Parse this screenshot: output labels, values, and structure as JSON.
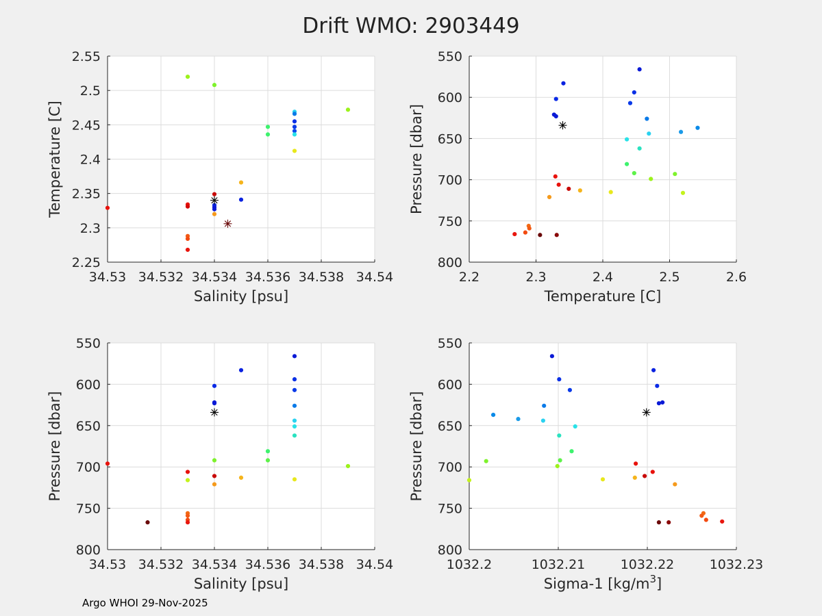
{
  "figure_title": "Drift WMO: 2903449",
  "footer": "Argo WHOI 29-Nov-2025",
  "chart_data": [
    {
      "type": "scatter",
      "xlabel": "Salinity [psu]",
      "ylabel": "Temperature [C]",
      "xlim": [
        34.53,
        34.54
      ],
      "ylim": [
        2.25,
        2.55
      ],
      "y_reversed": false,
      "xticks": [
        34.53,
        34.532,
        34.534,
        34.536,
        34.538,
        34.54
      ],
      "xtick_labels": [
        "34.53",
        "34.532",
        "34.534",
        "34.536",
        "34.538",
        "34.54"
      ],
      "yticks": [
        2.25,
        2.3,
        2.35,
        2.4,
        2.45,
        2.5,
        2.55
      ],
      "ytick_labels": [
        "2.25",
        "2.3",
        "2.35",
        "2.4",
        "2.45",
        "2.5",
        "2.55"
      ],
      "grid": true,
      "points": [
        {
          "x": 34.53,
          "y": 2.329,
          "color": "#e8120c"
        },
        {
          "x": 34.533,
          "y": 2.52,
          "color": "#9cf21c"
        },
        {
          "x": 34.533,
          "y": 2.334,
          "color": "#e8120c"
        },
        {
          "x": 34.533,
          "y": 2.331,
          "color": "#d40a08"
        },
        {
          "x": 34.533,
          "y": 2.288,
          "color": "#f25a14"
        },
        {
          "x": 34.533,
          "y": 2.284,
          "color": "#f24a10"
        },
        {
          "x": 34.533,
          "y": 2.268,
          "color": "#e8160e"
        },
        {
          "x": 34.534,
          "y": 2.508,
          "color": "#7ef22c"
        },
        {
          "x": 34.534,
          "y": 2.349,
          "color": "#c80a08"
        },
        {
          "x": 34.534,
          "y": 2.333,
          "color": "#0a2ae6"
        },
        {
          "x": 34.534,
          "y": 2.33,
          "color": "#0a1ad6"
        },
        {
          "x": 34.534,
          "y": 2.327,
          "color": "#0a1ad6"
        },
        {
          "x": 34.534,
          "y": 2.32,
          "color": "#f59a1c"
        },
        {
          "x": 34.535,
          "y": 2.366,
          "color": "#f5b41c"
        },
        {
          "x": 34.535,
          "y": 2.341,
          "color": "#0a22e0"
        },
        {
          "x": 34.536,
          "y": 2.447,
          "color": "#3ef26e"
        },
        {
          "x": 34.536,
          "y": 2.436,
          "color": "#3ef26e"
        },
        {
          "x": 34.537,
          "y": 2.469,
          "color": "#2ad2f0"
        },
        {
          "x": 34.537,
          "y": 2.466,
          "color": "#0a7ae8"
        },
        {
          "x": 34.537,
          "y": 2.455,
          "color": "#0a30e6"
        },
        {
          "x": 34.537,
          "y": 2.447,
          "color": "#0a3ae8"
        },
        {
          "x": 34.537,
          "y": 2.441,
          "color": "#0a4aee"
        },
        {
          "x": 34.537,
          "y": 2.436,
          "color": "#2ae2e8"
        },
        {
          "x": 34.537,
          "y": 2.412,
          "color": "#e8e81c"
        },
        {
          "x": 34.539,
          "y": 2.472,
          "color": "#9cf21c"
        }
      ],
      "marker": {
        "x": 34.5345,
        "y": 2.306,
        "symbol": "*",
        "color": "#6a0a0a"
      },
      "marker2": {
        "x": 34.534,
        "y": 2.34,
        "symbol": "*",
        "color": "#000000"
      }
    },
    {
      "type": "scatter",
      "xlabel": "Temperature [C]",
      "ylabel": "Pressure [dbar]",
      "xlim": [
        2.2,
        2.6
      ],
      "ylim": [
        550,
        800
      ],
      "y_reversed": true,
      "xticks": [
        2.2,
        2.3,
        2.4,
        2.5,
        2.6
      ],
      "xtick_labels": [
        "2.2",
        "2.3",
        "2.4",
        "2.5",
        "2.6"
      ],
      "yticks": [
        550,
        600,
        650,
        700,
        750,
        800
      ],
      "ytick_labels": [
        "550",
        "600",
        "650",
        "700",
        "750",
        "800"
      ],
      "grid": true,
      "points": [
        {
          "x": 2.455,
          "y": 566,
          "color": "#0a1ad6"
        },
        {
          "x": 2.341,
          "y": 583,
          "color": "#0a22e0"
        },
        {
          "x": 2.447,
          "y": 594,
          "color": "#0a30e6"
        },
        {
          "x": 2.33,
          "y": 602,
          "color": "#0a2ae6"
        },
        {
          "x": 2.441,
          "y": 607,
          "color": "#0a3ae8"
        },
        {
          "x": 2.327,
          "y": 621,
          "color": "#0a1ad6"
        },
        {
          "x": 2.33,
          "y": 623,
          "color": "#0a1ad6"
        },
        {
          "x": 2.466,
          "y": 626,
          "color": "#0a7ae8"
        },
        {
          "x": 2.542,
          "y": 637,
          "color": "#0a8ae8"
        },
        {
          "x": 2.517,
          "y": 642,
          "color": "#1a9ae8"
        },
        {
          "x": 2.469,
          "y": 644,
          "color": "#2ad2f0"
        },
        {
          "x": 2.436,
          "y": 651,
          "color": "#2ae2e8"
        },
        {
          "x": 2.455,
          "y": 662,
          "color": "#2ae2c0"
        },
        {
          "x": 2.436,
          "y": 681,
          "color": "#3ef26e"
        },
        {
          "x": 2.447,
          "y": 692,
          "color": "#5ef24a"
        },
        {
          "x": 2.508,
          "y": 693,
          "color": "#7ef22c"
        },
        {
          "x": 2.329,
          "y": 696,
          "color": "#e8120c"
        },
        {
          "x": 2.472,
          "y": 699,
          "color": "#9cf21c"
        },
        {
          "x": 2.334,
          "y": 706,
          "color": "#e8120c"
        },
        {
          "x": 2.349,
          "y": 711,
          "color": "#c80a08"
        },
        {
          "x": 2.366,
          "y": 713,
          "color": "#f5b41c"
        },
        {
          "x": 2.412,
          "y": 715,
          "color": "#e8e81c"
        },
        {
          "x": 2.52,
          "y": 716,
          "color": "#c4f21c"
        },
        {
          "x": 2.32,
          "y": 721,
          "color": "#f59a1c"
        },
        {
          "x": 2.289,
          "y": 756,
          "color": "#f26a14"
        },
        {
          "x": 2.29,
          "y": 759,
          "color": "#f25a14"
        },
        {
          "x": 2.284,
          "y": 764,
          "color": "#f24a10"
        },
        {
          "x": 2.268,
          "y": 766,
          "color": "#e8160e"
        },
        {
          "x": 2.306,
          "y": 767,
          "color": "#6a0a0a"
        },
        {
          "x": 2.331,
          "y": 767,
          "color": "#8a0a0a"
        }
      ],
      "marker": {
        "x": 2.34,
        "y": 634,
        "symbol": "*",
        "color": "#000000"
      }
    },
    {
      "type": "scatter",
      "xlabel": "Salinity [psu]",
      "ylabel": "Pressure [dbar]",
      "xlim": [
        34.53,
        34.54
      ],
      "ylim": [
        550,
        800
      ],
      "y_reversed": true,
      "xticks": [
        34.53,
        34.532,
        34.534,
        34.536,
        34.538,
        34.54
      ],
      "xtick_labels": [
        "34.53",
        "34.532",
        "34.534",
        "34.536",
        "34.538",
        "34.54"
      ],
      "yticks": [
        550,
        600,
        650,
        700,
        750,
        800
      ],
      "ytick_labels": [
        "550",
        "600",
        "650",
        "700",
        "750",
        "800"
      ],
      "grid": true,
      "points": [
        {
          "x": 34.537,
          "y": 566,
          "color": "#0a1ad6"
        },
        {
          "x": 34.535,
          "y": 583,
          "color": "#0a22e0"
        },
        {
          "x": 34.537,
          "y": 594,
          "color": "#0a30e6"
        },
        {
          "x": 34.534,
          "y": 602,
          "color": "#0a2ae6"
        },
        {
          "x": 34.537,
          "y": 607,
          "color": "#0a3ae8"
        },
        {
          "x": 34.534,
          "y": 622,
          "color": "#0a1ad6"
        },
        {
          "x": 34.534,
          "y": 623,
          "color": "#0a1ad6"
        },
        {
          "x": 34.537,
          "y": 626,
          "color": "#0a7ae8"
        },
        {
          "x": 34.537,
          "y": 644,
          "color": "#2ad2f0"
        },
        {
          "x": 34.537,
          "y": 651,
          "color": "#2ae2e8"
        },
        {
          "x": 34.537,
          "y": 662,
          "color": "#2ae2c0"
        },
        {
          "x": 34.536,
          "y": 681,
          "color": "#3ef26e"
        },
        {
          "x": 34.536,
          "y": 692,
          "color": "#5ef24a"
        },
        {
          "x": 34.534,
          "y": 692,
          "color": "#7ef22c"
        },
        {
          "x": 34.53,
          "y": 696,
          "color": "#e8120c"
        },
        {
          "x": 34.539,
          "y": 699,
          "color": "#9cf21c"
        },
        {
          "x": 34.533,
          "y": 706,
          "color": "#e8120c"
        },
        {
          "x": 34.534,
          "y": 711,
          "color": "#c80a08"
        },
        {
          "x": 34.535,
          "y": 713,
          "color": "#f5b41c"
        },
        {
          "x": 34.537,
          "y": 715,
          "color": "#e8e81c"
        },
        {
          "x": 34.533,
          "y": 716,
          "color": "#c4f21c"
        },
        {
          "x": 34.534,
          "y": 721,
          "color": "#f59a1c"
        },
        {
          "x": 34.533,
          "y": 756,
          "color": "#f26a14"
        },
        {
          "x": 34.533,
          "y": 759,
          "color": "#f25a14"
        },
        {
          "x": 34.533,
          "y": 764,
          "color": "#f24a10"
        },
        {
          "x": 34.533,
          "y": 767,
          "color": "#e8160e"
        },
        {
          "x": 34.5315,
          "y": 767,
          "color": "#6a0a0a"
        }
      ],
      "marker": {
        "x": 34.534,
        "y": 634,
        "symbol": "*",
        "color": "#000000"
      }
    },
    {
      "type": "scatter",
      "xlabel": "Sigma-1 [kg/m",
      "xlabel_sup": "3",
      "xlabel_end": "]",
      "ylabel": "Pressure [dbar]",
      "xlim": [
        1032.2,
        1032.23
      ],
      "ylim": [
        550,
        800
      ],
      "y_reversed": true,
      "xticks": [
        1032.2,
        1032.21,
        1032.22,
        1032.23
      ],
      "xtick_labels": [
        "1032.2",
        "1032.21",
        "1032.22",
        "1032.23"
      ],
      "yticks": [
        550,
        600,
        650,
        700,
        750,
        800
      ],
      "ytick_labels": [
        "550",
        "600",
        "650",
        "700",
        "750",
        "800"
      ],
      "grid": true,
      "points": [
        {
          "x": 1032.2093,
          "y": 566,
          "color": "#0a1ad6"
        },
        {
          "x": 1032.2207,
          "y": 583,
          "color": "#0a22e0"
        },
        {
          "x": 1032.2101,
          "y": 594,
          "color": "#0a30e6"
        },
        {
          "x": 1032.2211,
          "y": 602,
          "color": "#0a2ae6"
        },
        {
          "x": 1032.2113,
          "y": 607,
          "color": "#0a3ae8"
        },
        {
          "x": 1032.2217,
          "y": 622,
          "color": "#0a1ad6"
        },
        {
          "x": 1032.2213,
          "y": 623,
          "color": "#0a1ad6"
        },
        {
          "x": 1032.2084,
          "y": 626,
          "color": "#0a7ae8"
        },
        {
          "x": 1032.2027,
          "y": 637,
          "color": "#0a8ae8"
        },
        {
          "x": 1032.2055,
          "y": 642,
          "color": "#1a9ae8"
        },
        {
          "x": 1032.2083,
          "y": 644,
          "color": "#2ad2f0"
        },
        {
          "x": 1032.2119,
          "y": 651,
          "color": "#2ae2e8"
        },
        {
          "x": 1032.2101,
          "y": 662,
          "color": "#2ae2c0"
        },
        {
          "x": 1032.2115,
          "y": 681,
          "color": "#3ef26e"
        },
        {
          "x": 1032.2102,
          "y": 692,
          "color": "#5ef24a"
        },
        {
          "x": 1032.2019,
          "y": 693,
          "color": "#7ef22c"
        },
        {
          "x": 1032.2187,
          "y": 696,
          "color": "#e8120c"
        },
        {
          "x": 1032.2099,
          "y": 699,
          "color": "#9cf21c"
        },
        {
          "x": 1032.2206,
          "y": 706,
          "color": "#e8120c"
        },
        {
          "x": 1032.2197,
          "y": 711,
          "color": "#c80a08"
        },
        {
          "x": 1032.2186,
          "y": 713,
          "color": "#f5b41c"
        },
        {
          "x": 1032.215,
          "y": 715,
          "color": "#e8e81c"
        },
        {
          "x": 1032.2,
          "y": 716,
          "color": "#c4f21c"
        },
        {
          "x": 1032.2231,
          "y": 721,
          "color": "#f59a1c"
        },
        {
          "x": 1032.2263,
          "y": 756,
          "color": "#f26a14"
        },
        {
          "x": 1032.2261,
          "y": 759,
          "color": "#f25a14"
        },
        {
          "x": 1032.2266,
          "y": 764,
          "color": "#f24a10"
        },
        {
          "x": 1032.2284,
          "y": 766,
          "color": "#e8160e"
        },
        {
          "x": 1032.2213,
          "y": 767,
          "color": "#6a0a0a"
        },
        {
          "x": 1032.2224,
          "y": 767,
          "color": "#8a0a0a"
        }
      ],
      "marker": {
        "x": 1032.2199,
        "y": 634,
        "symbol": "*",
        "color": "#000000"
      }
    }
  ]
}
